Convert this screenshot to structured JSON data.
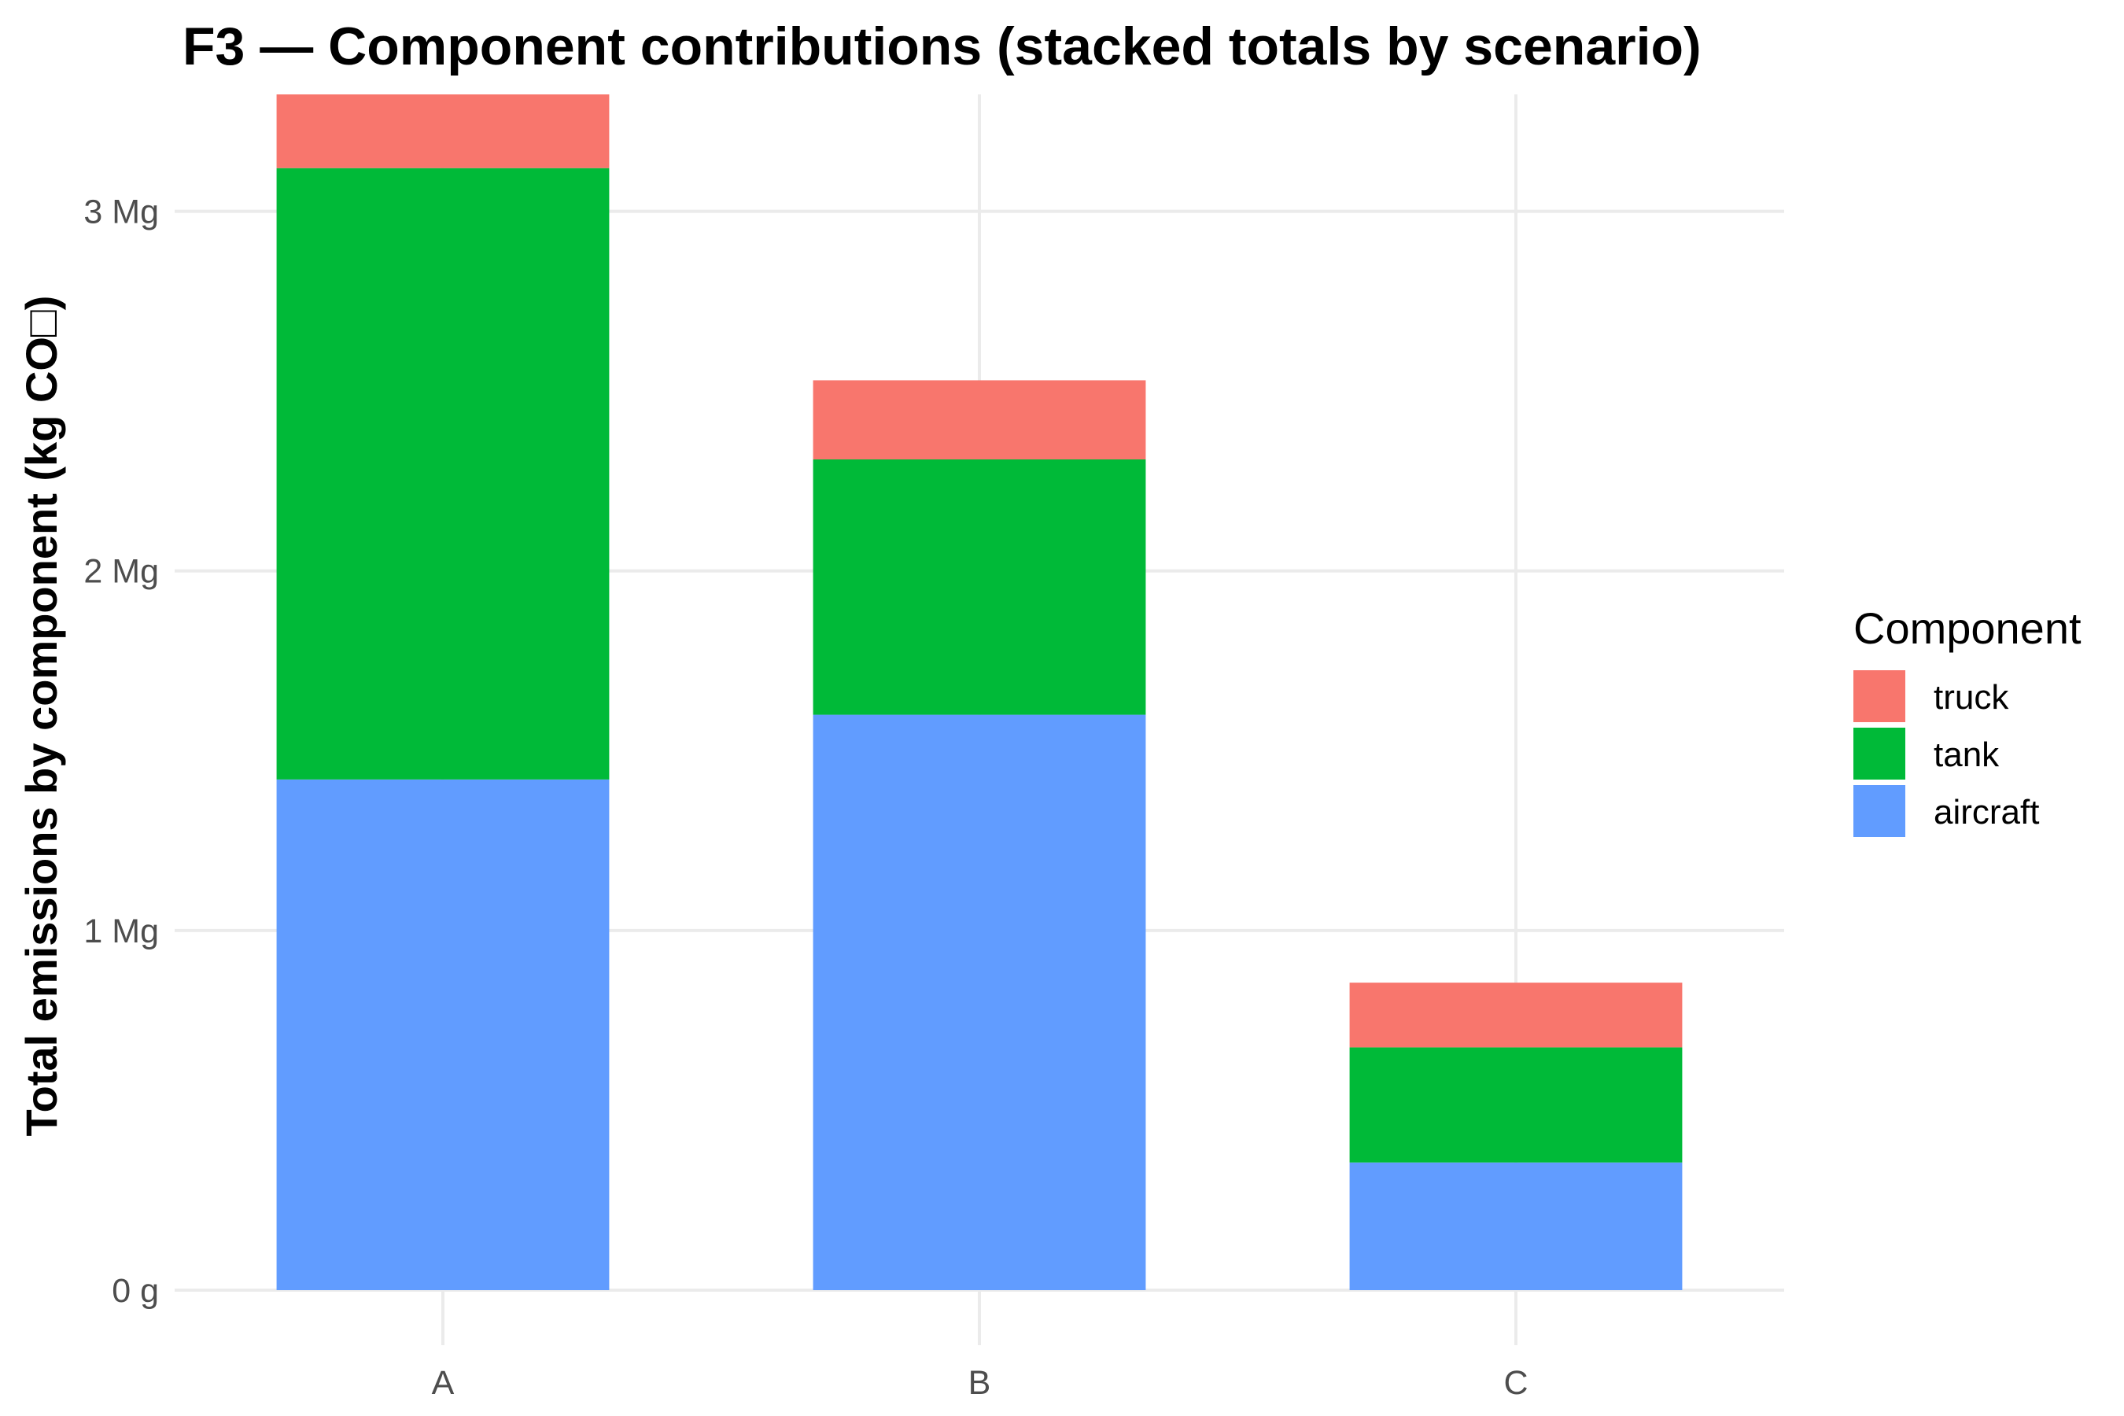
{
  "chart_data": {
    "type": "bar",
    "stacked": true,
    "title": "F3 — Component contributions (stacked totals by scenario)",
    "xlabel": "",
    "ylabel": "Total emissions by component (kg CO□)",
    "categories": [
      "A",
      "B",
      "C"
    ],
    "series": [
      {
        "name": "aircraft",
        "color": "#619CFF",
        "values": [
          1420,
          1600,
          355
        ]
      },
      {
        "name": "tank",
        "color": "#00BA38",
        "values": [
          1700,
          710,
          320
        ]
      },
      {
        "name": "truck",
        "color": "#F8766D",
        "values": [
          205,
          220,
          180
        ]
      }
    ],
    "ylim": [
      0,
      3325
    ],
    "yticks": [
      {
        "value": 0,
        "label": "0 g"
      },
      {
        "value": 1000,
        "label": "1 Mg"
      },
      {
        "value": 2000,
        "label": "2 Mg"
      },
      {
        "value": 3000,
        "label": "3 Mg"
      }
    ],
    "legend": {
      "title": "Component",
      "position": "right",
      "order": [
        "truck",
        "tank",
        "aircraft"
      ]
    },
    "grid": true
  }
}
